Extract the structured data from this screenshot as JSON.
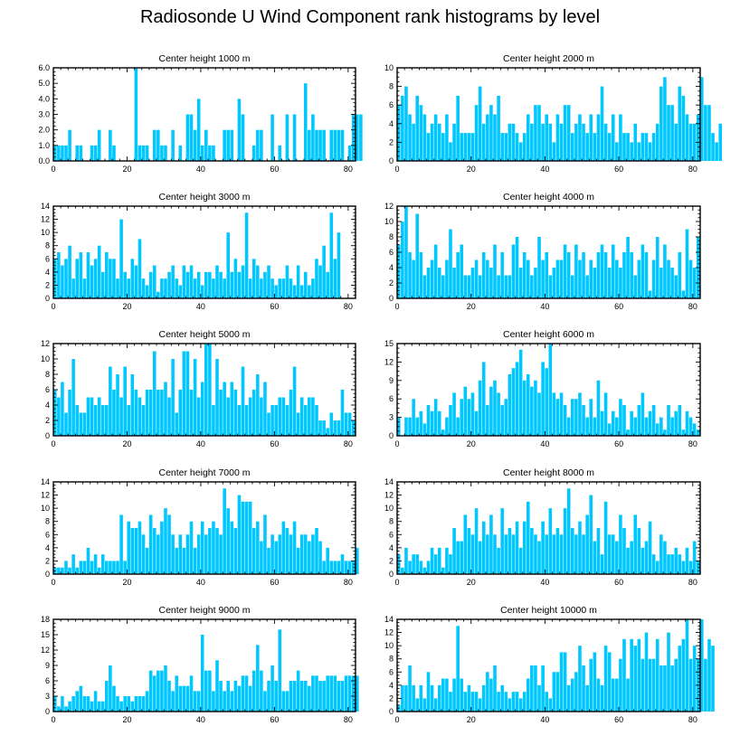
{
  "page": {
    "title": "Radiosonde U Wind Component rank histograms by level"
  },
  "colors": {
    "bar": "#00c8ff",
    "axis": "#000000",
    "background": "#ffffff"
  },
  "chart_data": [
    {
      "type": "bar",
      "title": "Center height 1000 m",
      "xlim": [
        0,
        82
      ],
      "ylim": [
        0,
        6
      ],
      "xticks": [
        0,
        20,
        40,
        60,
        80
      ],
      "yticks": [
        0,
        1,
        2,
        3,
        4,
        5,
        6
      ],
      "ytick_labels": [
        "0.0",
        "1.0",
        "2.0",
        "3.0",
        "4.0",
        "5.0",
        "6.0"
      ],
      "values": [
        1,
        1,
        1,
        1,
        2,
        0,
        1,
        1,
        0,
        0,
        1,
        1,
        2,
        0,
        0,
        2,
        1,
        0,
        0,
        0,
        0,
        0,
        6,
        1,
        1,
        1,
        0,
        2,
        2,
        1,
        1,
        0,
        2,
        0,
        1,
        0,
        3,
        3,
        2,
        4,
        1,
        2,
        1,
        1,
        0,
        0,
        2,
        2,
        2,
        0,
        4,
        3,
        0,
        0,
        1,
        2,
        2,
        0,
        0,
        3,
        0,
        1,
        0,
        3,
        0,
        3,
        0,
        0,
        5,
        2,
        3,
        2,
        2,
        2,
        0,
        2,
        2,
        2,
        2,
        0,
        1,
        3,
        3,
        3
      ]
    },
    {
      "type": "bar",
      "title": "Center height 2000 m",
      "xlim": [
        0,
        82
      ],
      "ylim": [
        0,
        10
      ],
      "xticks": [
        0,
        20,
        40,
        60,
        80
      ],
      "yticks": [
        0,
        2,
        4,
        6,
        8,
        10
      ],
      "ytick_labels": [
        "0",
        "2",
        "4",
        "6",
        "8",
        "10"
      ],
      "values": [
        6,
        7,
        8,
        5,
        4,
        7,
        6,
        5,
        3,
        4,
        5,
        4,
        3,
        5,
        2,
        4,
        7,
        3,
        3,
        3,
        3,
        6,
        8,
        4,
        5,
        6,
        5,
        7,
        3,
        3,
        4,
        4,
        3,
        2,
        3,
        5,
        4,
        6,
        6,
        4,
        5,
        4,
        2,
        5,
        4,
        6,
        6,
        3,
        4,
        5,
        4,
        3,
        5,
        3,
        5,
        8,
        4,
        3,
        5,
        2,
        5,
        3,
        3,
        2,
        4,
        2,
        3,
        3,
        2,
        3,
        4,
        8,
        9,
        6,
        6,
        4,
        8,
        7,
        5,
        4,
        4,
        5,
        9,
        6,
        6,
        3,
        2,
        4
      ]
    },
    {
      "type": "bar",
      "title": "Center height 3000 m",
      "xlim": [
        0,
        82
      ],
      "ylim": [
        0,
        14
      ],
      "xticks": [
        0,
        20,
        40,
        60,
        80
      ],
      "yticks": [
        0,
        2,
        4,
        6,
        8,
        10,
        12,
        14
      ],
      "ytick_labels": [
        "0",
        "2",
        "4",
        "6",
        "8",
        "10",
        "12",
        "14"
      ],
      "values": [
        6,
        7,
        5,
        6,
        8,
        3,
        6,
        7,
        3,
        7,
        5,
        6,
        8,
        4,
        7,
        6,
        6,
        3,
        12,
        4,
        3,
        6,
        5,
        9,
        3,
        2,
        4,
        5,
        1,
        3,
        3,
        4,
        5,
        3,
        2,
        5,
        4,
        5,
        3,
        4,
        2,
        4,
        4,
        3,
        5,
        4,
        3,
        10,
        4,
        6,
        4,
        5,
        13,
        3,
        6,
        5,
        3,
        4,
        5,
        3,
        2,
        3,
        3,
        5,
        3,
        2,
        5,
        2,
        4,
        2,
        3,
        6,
        5,
        8,
        4,
        13,
        6,
        10
      ]
    },
    {
      "type": "bar",
      "title": "Center height 4000 m",
      "xlim": [
        0,
        82
      ],
      "ylim": [
        0,
        12
      ],
      "xticks": [
        0,
        20,
        40,
        60,
        80
      ],
      "yticks": [
        0,
        2,
        4,
        6,
        8,
        10,
        12
      ],
      "ytick_labels": [
        "0",
        "2",
        "4",
        "6",
        "8",
        "10",
        "12"
      ],
      "values": [
        7,
        10,
        12,
        6,
        5,
        11,
        6,
        3,
        4,
        5,
        7,
        4,
        3,
        5,
        9,
        4,
        6,
        7,
        3,
        3,
        4,
        5,
        3,
        6,
        5,
        4,
        7,
        3,
        6,
        3,
        3,
        7,
        8,
        4,
        6,
        5,
        3,
        4,
        8,
        5,
        6,
        3,
        4,
        5,
        5,
        7,
        6,
        3,
        7,
        5,
        6,
        3,
        5,
        4,
        6,
        7,
        6,
        4,
        7,
        5,
        4,
        6,
        8,
        6,
        3,
        5,
        7,
        6,
        1,
        5,
        8,
        4,
        7,
        5,
        4,
        3,
        6,
        1,
        9,
        5,
        4,
        8
      ]
    },
    {
      "type": "bar",
      "title": "Center height 5000 m",
      "xlim": [
        0,
        82
      ],
      "ylim": [
        0,
        12
      ],
      "xticks": [
        0,
        20,
        40,
        60,
        80
      ],
      "yticks": [
        0,
        2,
        4,
        6,
        8,
        10,
        12
      ],
      "ytick_labels": [
        "0",
        "2",
        "4",
        "6",
        "8",
        "10",
        "12"
      ],
      "values": [
        6,
        5,
        7,
        3,
        6,
        10,
        4,
        3,
        3,
        5,
        5,
        4,
        5,
        4,
        4,
        9,
        6,
        8,
        5,
        9,
        4,
        8,
        6,
        5,
        4,
        6,
        6,
        11,
        6,
        6,
        7,
        5,
        10,
        3,
        6,
        11,
        11,
        6,
        10,
        5,
        7,
        12,
        12,
        4,
        10,
        6,
        7,
        5,
        7,
        6,
        4,
        9,
        4,
        5,
        6,
        8,
        5,
        7,
        3,
        4,
        4,
        5,
        5,
        4,
        6,
        9,
        3,
        5,
        4,
        5,
        5,
        4,
        2,
        2,
        1,
        3,
        2,
        2,
        6,
        3,
        3,
        2
      ]
    },
    {
      "type": "bar",
      "title": "Center height 6000 m",
      "xlim": [
        0,
        82
      ],
      "ylim": [
        0,
        15
      ],
      "xticks": [
        0,
        20,
        40,
        60,
        80
      ],
      "yticks": [
        0,
        3,
        6,
        9,
        12,
        15
      ],
      "ytick_labels": [
        "0",
        "3",
        "6",
        "9",
        "12",
        "15"
      ],
      "values": [
        3,
        0,
        3,
        3,
        6,
        3,
        4,
        2,
        5,
        4,
        6,
        4,
        1,
        3,
        5,
        7,
        3,
        6,
        8,
        6,
        7,
        4,
        9,
        12,
        5,
        8,
        9,
        7,
        5,
        6,
        10,
        11,
        12,
        14,
        9,
        10,
        8,
        9,
        7,
        12,
        11,
        15,
        7,
        6,
        7,
        5,
        3,
        6,
        6,
        7,
        5,
        3,
        6,
        3,
        9,
        4,
        7,
        2,
        4,
        3,
        6,
        5,
        1,
        4,
        3,
        5,
        7,
        3,
        4,
        5,
        2,
        3,
        1,
        5,
        3,
        4,
        5,
        1,
        4,
        3,
        2,
        1
      ]
    },
    {
      "type": "bar",
      "title": "Center height 7000 m",
      "xlim": [
        0,
        82
      ],
      "ylim": [
        0,
        14
      ],
      "xticks": [
        0,
        20,
        40,
        60,
        80
      ],
      "yticks": [
        0,
        2,
        4,
        6,
        8,
        10,
        12,
        14
      ],
      "ytick_labels": [
        "0",
        "2",
        "4",
        "6",
        "8",
        "10",
        "12",
        "14"
      ],
      "values": [
        1,
        1,
        1,
        2,
        1,
        3,
        1,
        2,
        2,
        4,
        2,
        3,
        1,
        3,
        2,
        2,
        2,
        2,
        9,
        2,
        8,
        7,
        7,
        8,
        6,
        4,
        9,
        7,
        6,
        8,
        10,
        9,
        6,
        4,
        6,
        4,
        6,
        8,
        4,
        6,
        8,
        6,
        7,
        8,
        7,
        6,
        13,
        10,
        8,
        7,
        12,
        11,
        11,
        11,
        7,
        8,
        5,
        9,
        4,
        6,
        5,
        6,
        8,
        7,
        6,
        8,
        4,
        6,
        6,
        5,
        6,
        7,
        5,
        2,
        4,
        2,
        2,
        2,
        3,
        2,
        2,
        2,
        4
      ]
    },
    {
      "type": "bar",
      "title": "Center height 8000 m",
      "xlim": [
        0,
        82
      ],
      "ylim": [
        0,
        14
      ],
      "xticks": [
        0,
        20,
        40,
        60,
        80
      ],
      "yticks": [
        0,
        2,
        4,
        6,
        8,
        10,
        12,
        14
      ],
      "ytick_labels": [
        "0",
        "2",
        "4",
        "6",
        "8",
        "10",
        "12",
        "14"
      ],
      "values": [
        3,
        1,
        4,
        2,
        3,
        3,
        2,
        1,
        2,
        4,
        3,
        4,
        1,
        4,
        3,
        7,
        5,
        5,
        9,
        7,
        6,
        10,
        5,
        8,
        6,
        9,
        6,
        4,
        10,
        6,
        7,
        6,
        8,
        4,
        8,
        11,
        7,
        6,
        5,
        8,
        6,
        10,
        6,
        7,
        6,
        10,
        13,
        7,
        6,
        8,
        6,
        9,
        12,
        5,
        7,
        3,
        11,
        6,
        6,
        5,
        9,
        7,
        4,
        5,
        9,
        7,
        4,
        5,
        8,
        3,
        2,
        6,
        5,
        3,
        3,
        4,
        3,
        2,
        4,
        2,
        5,
        2
      ]
    },
    {
      "type": "bar",
      "title": "Center height 9000 m",
      "xlim": [
        0,
        82
      ],
      "ylim": [
        0,
        18
      ],
      "xticks": [
        0,
        20,
        40,
        60,
        80
      ],
      "yticks": [
        0,
        3,
        6,
        9,
        12,
        15,
        18
      ],
      "ytick_labels": [
        "0",
        "3",
        "6",
        "9",
        "12",
        "15",
        "18"
      ],
      "values": [
        3,
        1,
        3,
        1,
        2,
        3,
        4,
        5,
        3,
        3,
        2,
        4,
        2,
        2,
        6,
        9,
        5,
        3,
        2,
        3,
        3,
        2,
        3,
        3,
        3,
        4,
        8,
        7,
        8,
        8,
        9,
        6,
        4,
        7,
        5,
        5,
        5,
        7,
        4,
        4,
        15,
        8,
        8,
        4,
        10,
        6,
        4,
        6,
        4,
        6,
        5,
        7,
        7,
        5,
        8,
        13,
        8,
        4,
        6,
        9,
        6,
        16,
        4,
        4,
        6,
        6,
        8,
        6,
        6,
        5,
        7,
        7,
        6,
        6,
        7,
        7,
        7,
        6,
        6,
        7,
        7,
        7,
        7
      ]
    },
    {
      "type": "bar",
      "title": "Center height 10000 m",
      "xlim": [
        0,
        82
      ],
      "ylim": [
        0,
        14
      ],
      "xticks": [
        0,
        20,
        40,
        60,
        80
      ],
      "yticks": [
        0,
        2,
        4,
        6,
        8,
        10,
        12,
        14
      ],
      "ytick_labels": [
        "0",
        "2",
        "4",
        "6",
        "8",
        "10",
        "12",
        "14"
      ],
      "values": [
        1,
        4,
        4,
        7,
        4,
        2,
        4,
        2,
        6,
        4,
        2,
        4,
        5,
        5,
        3,
        5,
        13,
        5,
        3,
        4,
        3,
        3,
        2,
        4,
        6,
        5,
        7,
        3,
        4,
        3,
        2,
        3,
        3,
        2,
        3,
        5,
        7,
        7,
        4,
        7,
        3,
        2,
        6,
        6,
        9,
        9,
        4,
        5,
        6,
        10,
        7,
        4,
        8,
        9,
        5,
        4,
        10,
        9,
        5,
        5,
        8,
        11,
        5,
        11,
        10,
        11,
        8,
        12,
        8,
        8,
        11,
        7,
        7,
        12,
        7,
        8,
        10,
        11,
        14,
        8,
        10,
        8,
        14,
        8,
        11,
        10
      ]
    }
  ]
}
